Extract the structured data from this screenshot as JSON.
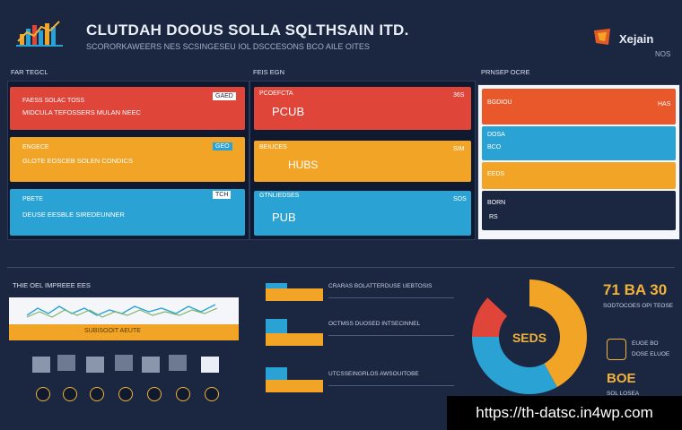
{
  "header": {
    "title": "CLUTDAH DOOUS SOLLA SQLTHSAIN ITD.",
    "subtitle": "SCORORKAWEERS NES SCSINGESEU IOL DSCCESONS BCO AILE OITES"
  },
  "brand": {
    "name": "Xejain",
    "sub": "NOS"
  },
  "sections": {
    "left": "FAR TEGCL",
    "mid": "FEIS EGN",
    "right": "PRNSEP OCRE",
    "bottom_left": "THIE OEL IMPREEE EES"
  },
  "left_cards": [
    {
      "title": "FAESS SOLAC TOSS",
      "sub": "MIDCULA TEFOSSERS MULAN NEEC",
      "tag": "GAED"
    },
    {
      "title": "ENGECE",
      "sub": "GLOTE EOSCEB SOLEN CONDICS",
      "tag": "GEO"
    },
    {
      "title": "PBETE",
      "sub": "DEUSE EESBLE SIREDEUNNER",
      "tag": "TCH"
    }
  ],
  "mid_cards": [
    {
      "title": "PCOEFCTA",
      "value": "PCUB",
      "tag": "36S"
    },
    {
      "title": "BEIUCES",
      "value": "HUBS",
      "tag": "SIM"
    },
    {
      "title": "GTNLIEDSES",
      "value": "PUB",
      "tag": "SOS"
    }
  ],
  "right_bars": [
    {
      "title": "BGDIOU",
      "value": "HAS"
    },
    {
      "title": "DOSA",
      "value": "BCO"
    },
    {
      "title": "EEDS",
      "value": ""
    },
    {
      "title": "BORN",
      "value": "RS"
    }
  ],
  "trend_banner": "SUBISOOIT AEUTE",
  "bar_rows": [
    {
      "label": "CRARAS BOLATTERDUSE UEBTOSIS"
    },
    {
      "label": "OCTMSS DUOSED INTSECINNEL"
    },
    {
      "label": "UTCSSEINGRLOS AWSOUITOBE"
    }
  ],
  "donut": {
    "center_label": "SEDS",
    "segments": [
      {
        "name": "orange",
        "value": 42,
        "color": "#f2a426"
      },
      {
        "name": "blue",
        "value": 33,
        "color": "#2aa3d4"
      },
      {
        "name": "red",
        "value": 12,
        "color": "#e0453a"
      },
      {
        "name": "dark",
        "value": 13,
        "color": "#1b2640"
      }
    ]
  },
  "stats": {
    "primary": "71 BA 30",
    "primary_sub": "SODTOCOES OPI TEOSE",
    "row1": "EUGE BO",
    "row2": "DOSE ELUOE",
    "secondary": "BOE",
    "secondary_sub": "SOL LOSEA"
  },
  "url": "https://th-datsc.in4wp.com",
  "colors": {
    "red": "#e0453a",
    "orange": "#f2a426",
    "blue": "#2aa3d4",
    "navy": "#1b2640",
    "gold": "#f2b23a"
  }
}
